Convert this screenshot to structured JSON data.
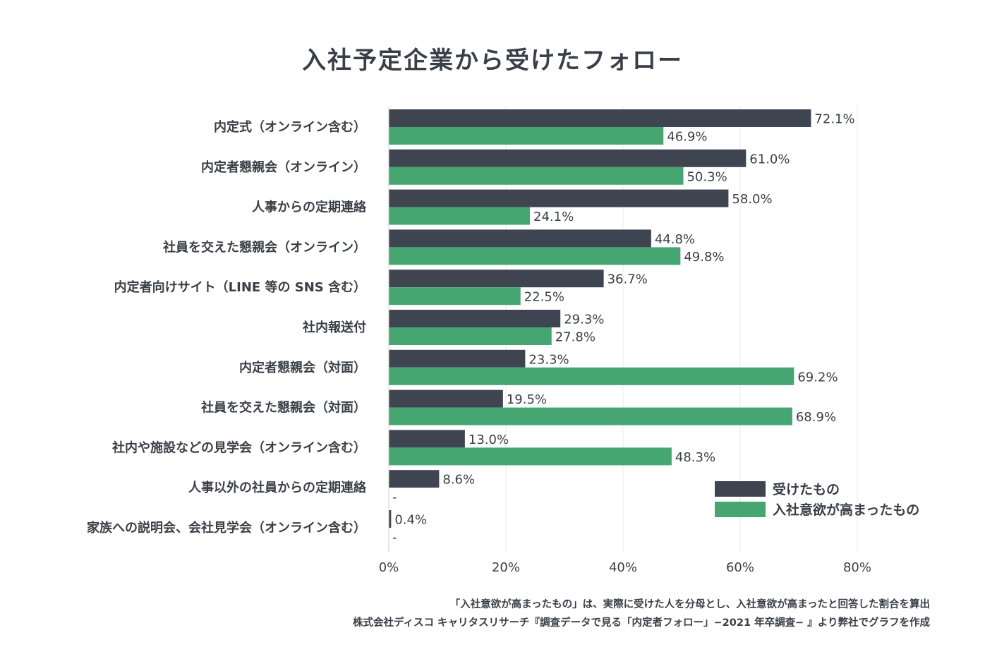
{
  "title": "入社予定企業から受けたフォロー",
  "notes": [
    "「入社意欲が高まったもの」は、実際に受けた人を分母とし、入社意欲が高まったと回答した割合を算出",
    "株式会社ディスコ キャリタスリサーチ『調査データで見る「内定者フォロー」−2021 年卒調査− 』より弊社でグラフを作成"
  ],
  "colors": {
    "received": "#3f4550",
    "motivated": "#46a672",
    "grid": "#e8e8e8",
    "text": "#3a3f47"
  },
  "chart_data": {
    "type": "bar",
    "orientation": "horizontal",
    "title": "入社予定企業から受けたフォロー",
    "categories": [
      "内定式（オンライン含む）",
      "内定者懇親会（オンライン）",
      "人事からの定期連絡",
      "社員を交えた懇親会（オンライン）",
      "内定者向けサイト（LINE 等の SNS 含む）",
      "社内報送付",
      "内定者懇親会（対面）",
      "社員を交えた懇親会（対面）",
      "社内や施設などの見学会（オンライン含む）",
      "人事以外の社員からの定期連絡",
      "家族への説明会、会社見学会（オンライン含む）"
    ],
    "series": [
      {
        "name": "受けたもの",
        "values": [
          72.1,
          61.0,
          58.0,
          44.8,
          36.7,
          29.3,
          23.3,
          19.5,
          13.0,
          8.6,
          0.4
        ],
        "labels": [
          "72.1%",
          "61.0%",
          "58.0%",
          "44.8%",
          "36.7%",
          "29.3%",
          "23.3%",
          "19.5%",
          "13.0%",
          "8.6%",
          "0.4%"
        ]
      },
      {
        "name": "入社意欲が高まったもの",
        "values": [
          46.9,
          50.3,
          24.1,
          49.8,
          22.5,
          27.8,
          69.2,
          68.9,
          48.3,
          null,
          null
        ],
        "labels": [
          "46.9%",
          "50.3%",
          "24.1%",
          "49.8%",
          "22.5%",
          "27.8%",
          "69.2%",
          "68.9%",
          "48.3%",
          "-",
          "-"
        ]
      }
    ],
    "xlim": [
      0,
      80
    ],
    "xticks": [
      "0%",
      "20%",
      "40%",
      "60%",
      "80%"
    ],
    "grid": true,
    "legend": "bottom-right"
  }
}
